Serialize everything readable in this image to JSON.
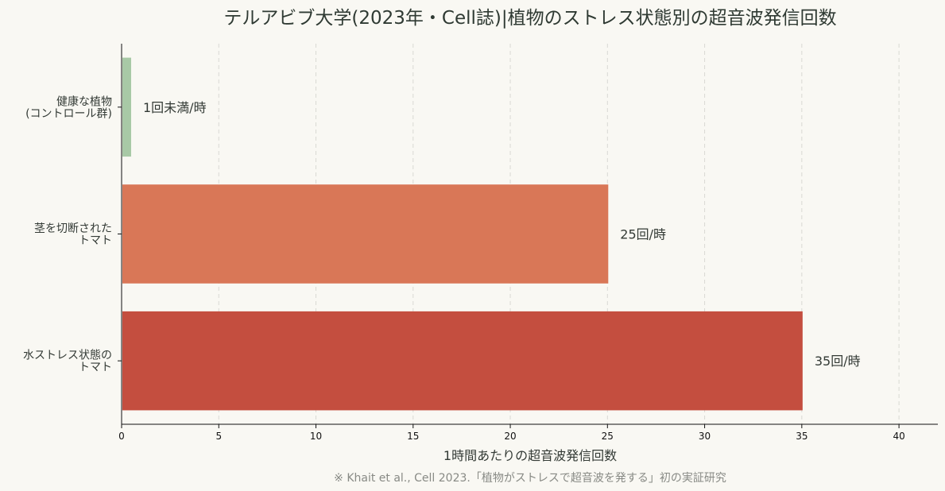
{
  "chart_data": {
    "type": "bar",
    "orientation": "horizontal",
    "title": "テルアビブ大学(2023年・Cell誌)|植物のストレス状態別の超音波発信回数",
    "xlabel": "1時間あたりの超音波発信回数",
    "note": "※ Khait et al., Cell 2023.「植物がストレスで超音波を発する」初の実証研究",
    "xlim": [
      0,
      42
    ],
    "xticks": [
      0,
      5,
      10,
      15,
      20,
      25,
      30,
      35,
      40
    ],
    "grid": "vertical dashed",
    "categories": [
      {
        "lines": [
          "健康な植物",
          "(コントロール群)"
        ],
        "value": 0.45,
        "label": "1回未満/時",
        "color": "#a8c9a6"
      },
      {
        "lines": [
          "茎を切断された",
          "トマト"
        ],
        "value": 25,
        "label": "25回/時",
        "color": "#d97757"
      },
      {
        "lines": [
          "水ストレス状態の",
          "トマト"
        ],
        "value": 35,
        "label": "35回/時",
        "color": "#c44e3f"
      }
    ]
  }
}
